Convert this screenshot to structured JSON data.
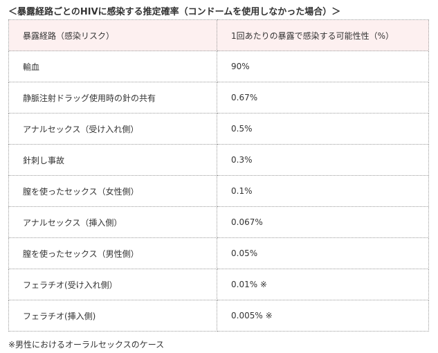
{
  "title": "＜暴露経路ごとのHIVに感染する推定確率（コンドームを使用しなかった場合）＞",
  "table": {
    "header": [
      "暴露経路（感染リスク）",
      "1回あたりの暴露で感染する可能性性（%）"
    ],
    "rows": [
      [
        "輸血",
        "90%"
      ],
      [
        "静脈注射ドラッグ使用時の針の共有",
        "0.67%"
      ],
      [
        "アナルセックス（受け入れ側）",
        "0.5%"
      ],
      [
        "針刺し事故",
        "0.3%"
      ],
      [
        "膣を使ったセックス（女性側）",
        "0.1%"
      ],
      [
        "アナルセックス（挿入側）",
        "0.067%"
      ],
      [
        "膣を使ったセックス（男性側）",
        "0.05%"
      ],
      [
        "フェラチオ(受け入れ側）",
        "0.01% ※"
      ],
      [
        "フェラチオ(挿入側)",
        "0.005% ※"
      ]
    ]
  },
  "footnote": "※男性におけるオーラルセックスのケース"
}
